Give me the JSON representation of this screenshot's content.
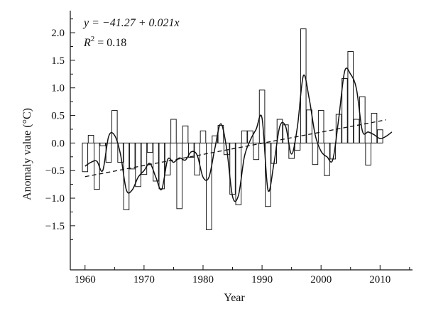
{
  "chart_data": {
    "type": "bar",
    "xlabel": "Year",
    "ylabel": "Anomaly value (°C)",
    "equation": {
      "line1": "y = −41.27 + 0.021x",
      "r2_label": "R",
      "r2_exp": "2",
      "r2_value": "= 0.18"
    },
    "xlim": [
      1957.5,
      2015.5
    ],
    "ylim": [
      -2.3,
      2.4
    ],
    "x_ticks": [
      1960,
      1970,
      1980,
      1990,
      2000,
      2010
    ],
    "x_tick_labels": [
      "1960",
      "1970",
      "1980",
      "1990",
      "2000",
      "2010"
    ],
    "y_ticks": [
      -1.5,
      -1.0,
      -0.5,
      0.0,
      0.5,
      1.0,
      1.5,
      2.0
    ],
    "y_tick_labels": [
      "−1.5",
      "−1.0",
      "−0.5",
      "0.0",
      "0.5",
      "1.0",
      "1.5",
      "2.0"
    ],
    "bars": {
      "years": [
        1960,
        1961,
        1962,
        1963,
        1964,
        1965,
        1966,
        1967,
        1968,
        1969,
        1970,
        1971,
        1972,
        1973,
        1974,
        1975,
        1976,
        1977,
        1978,
        1979,
        1980,
        1981,
        1982,
        1983,
        1984,
        1985,
        1986,
        1987,
        1988,
        1989,
        1990,
        1991,
        1992,
        1993,
        1994,
        1995,
        1996,
        1997,
        1998,
        1999,
        2000,
        2001,
        2002,
        2003,
        2004,
        2005,
        2006,
        2007,
        2008,
        2009,
        2010,
        2011
      ],
      "values": [
        -0.52,
        0.14,
        -0.84,
        -0.05,
        -0.35,
        0.59,
        -0.35,
        -1.21,
        -0.47,
        -0.79,
        -0.57,
        -0.17,
        -0.69,
        -0.83,
        -0.58,
        0.43,
        -1.19,
        0.31,
        -0.26,
        -0.58,
        0.22,
        -1.57,
        0.13,
        0.32,
        -0.21,
        -0.93,
        -1.12,
        0.22,
        0.22,
        -0.3,
        0.96,
        -1.15,
        -0.37,
        0.43,
        0.33,
        -0.28,
        -0.13,
        2.07,
        0.6,
        -0.39,
        0.59,
        -0.59,
        -0.29,
        0.52,
        1.17,
        1.66,
        0.43,
        0.84,
        -0.4,
        0.54,
        0.24,
        0.0
      ]
    },
    "smooth": {
      "x": [
        1960,
        1961,
        1962,
        1963,
        1964,
        1965,
        1966,
        1967,
        1968,
        1969,
        1970,
        1971,
        1972,
        1973,
        1974,
        1975,
        1976,
        1977,
        1978,
        1979,
        1980,
        1981,
        1982,
        1983,
        1984,
        1985,
        1986,
        1987,
        1988,
        1989,
        1990,
        1991,
        1992,
        1993,
        1994,
        1995,
        1996,
        1997,
        1998,
        1999,
        2000,
        2001,
        2002,
        2003,
        2004,
        2005,
        2006,
        2007,
        2008,
        2009,
        2010,
        2011,
        2012
      ],
      "y": [
        -0.42,
        -0.35,
        -0.33,
        -0.5,
        0.12,
        0.14,
        -0.2,
        -0.85,
        -0.85,
        -0.62,
        -0.5,
        -0.37,
        -0.62,
        -0.84,
        -0.3,
        -0.35,
        -0.27,
        -0.31,
        -0.16,
        -0.22,
        -0.62,
        -0.62,
        -0.1,
        0.35,
        -0.1,
        -0.97,
        -0.95,
        -0.25,
        0.05,
        0.25,
        0.45,
        -0.85,
        -0.38,
        0.3,
        0.3,
        -0.2,
        0.3,
        1.22,
        0.8,
        0.15,
        -0.15,
        -0.25,
        -0.3,
        0.45,
        1.3,
        1.25,
        0.98,
        0.22,
        0.2,
        0.15,
        0.08,
        0.12,
        0.2
      ]
    },
    "trend": {
      "x": [
        1960,
        2011
      ],
      "y": [
        -0.61,
        0.42
      ]
    },
    "grid": false,
    "legend": "none"
  }
}
